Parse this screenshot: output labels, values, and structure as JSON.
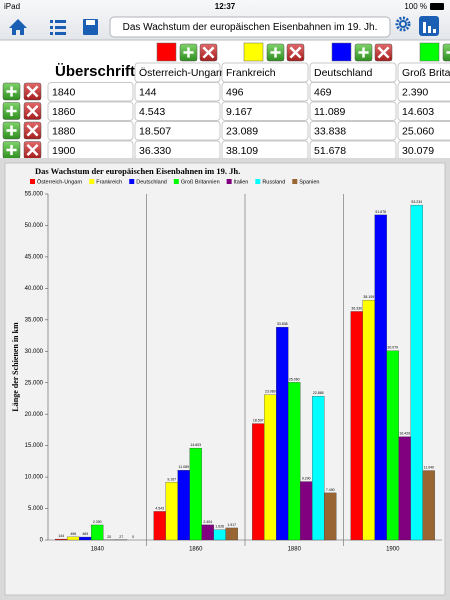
{
  "status_bar": {
    "carrier": "iPad",
    "time": "12:37",
    "battery": "100 %"
  },
  "toolbar": {
    "title": "Das Wachstum der europäischen Eisenbahnen im 19. Jh."
  },
  "table": {
    "header": "Überschrift",
    "columns": [
      {
        "name": "Österreich-Ungarn",
        "color": "#ff0000"
      },
      {
        "name": "Frankreich",
        "color": "#ffff00"
      },
      {
        "name": "Deutschland",
        "color": "#0000ff"
      },
      {
        "name": "Groß Britan",
        "color": "#00ff00"
      }
    ],
    "rows": [
      [
        "1840",
        "144",
        "496",
        "469",
        "2.390"
      ],
      [
        "1860",
        "4.543",
        "9.167",
        "11.089",
        "14.603"
      ],
      [
        "1880",
        "18.507",
        "23.089",
        "33.838",
        "25.060"
      ],
      [
        "1900",
        "36.330",
        "38.109",
        "51.678",
        "30.079"
      ]
    ]
  },
  "chart_data": {
    "type": "bar",
    "title": "Das Wachstum der europäischen Eisenbahnen im 19. Jh.",
    "y_label": "Länge der Schienen in km",
    "categories": [
      "1840",
      "1860",
      "1880",
      "1900"
    ],
    "series": [
      {
        "name": "Österreich-Ungarn",
        "color": "#ff0000",
        "values": [
          144,
          4543,
          18507,
          36330
        ],
        "value_labels": [
          "144",
          "4.543",
          "18.507",
          "36.330"
        ]
      },
      {
        "name": "Frankreich",
        "color": "#ffff00",
        "values": [
          496,
          9167,
          23089,
          38109
        ],
        "value_labels": [
          "496",
          "9.167",
          "23.089",
          "38.109"
        ]
      },
      {
        "name": "Deutschland",
        "color": "#0000ff",
        "values": [
          469,
          11089,
          33838,
          51678
        ],
        "value_labels": [
          "469",
          "11.089",
          "33.838",
          "51.678"
        ]
      },
      {
        "name": "Groß Britannien",
        "color": "#00ff00",
        "values": [
          2390,
          14603,
          25060,
          30079
        ],
        "value_labels": [
          "2.390",
          "14.603",
          "25.060",
          "30.079"
        ]
      },
      {
        "name": "Italien",
        "color": "#800080",
        "values": [
          20,
          2404,
          9290,
          16429
        ],
        "value_labels": [
          "20",
          "2.404",
          "9.290",
          "16.429"
        ]
      },
      {
        "name": "Russland",
        "color": "#00ffff",
        "values": [
          27,
          1626,
          22865,
          53234
        ],
        "value_labels": [
          "27",
          "1.626",
          "22.865",
          "53.234"
        ]
      },
      {
        "name": "Spanien",
        "color": "#996633",
        "values": [
          0,
          1917,
          7490,
          11040
        ],
        "value_labels": [
          "0",
          "1.917",
          "7.490",
          "11.040"
        ]
      }
    ],
    "ylim": [
      0,
      55000
    ],
    "yticks": [
      0,
      {
        "value": 5000,
        "label": "5.000"
      },
      {
        "value": 10000,
        "label": "10.000"
      },
      {
        "value": 15000,
        "label": "15.000"
      },
      {
        "value": 20000,
        "label": "20.000"
      },
      {
        "value": 25000,
        "label": "25.000"
      },
      {
        "value": 30000,
        "label": "30.000"
      },
      {
        "value": 35000,
        "label": "35.000"
      },
      {
        "value": 40000,
        "label": "40.000"
      },
      {
        "value": 45000,
        "label": "45.000"
      },
      {
        "value": 50000,
        "label": "50.000"
      },
      {
        "value": 55000,
        "label": "55.000"
      }
    ],
    "grid": false,
    "legend": "top"
  }
}
